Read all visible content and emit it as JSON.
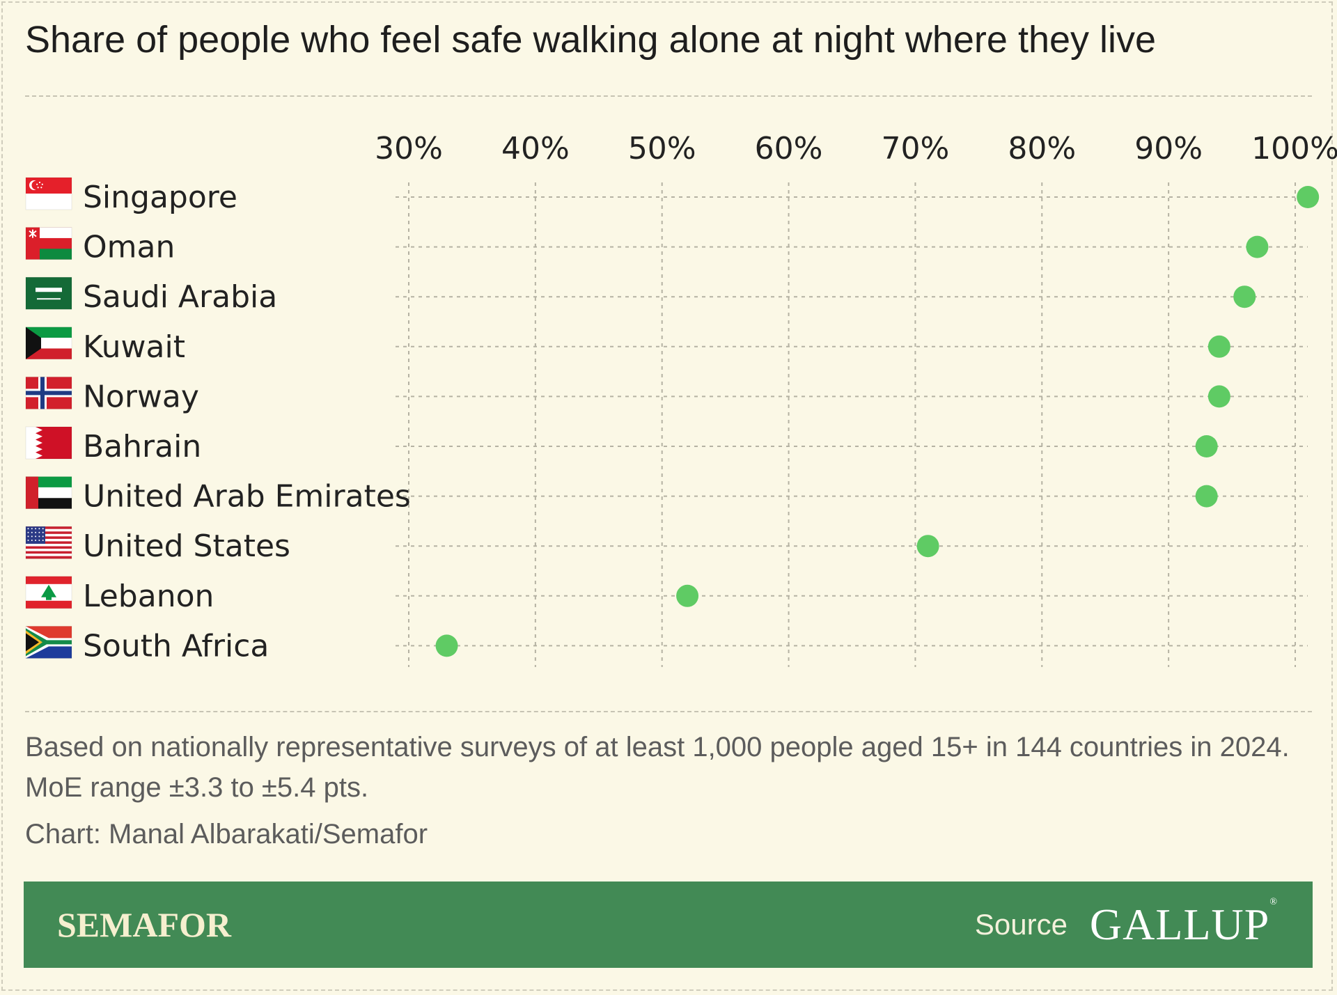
{
  "title": "Share of people who feel safe walking alone at night where they live",
  "note": "Based on nationally representative surveys of at least 1,000 people aged 15+ in 144 countries in 2024. MoE range ±3.3 to ±5.4 pts.",
  "credit": "Chart: Manal Albarakati/Semafor",
  "footer": {
    "brand": "SEMAFOR",
    "source_label": "Source",
    "source_name": "GALLUP",
    "source_mark": "®"
  },
  "colors": {
    "background": "#fbf8e6",
    "dot": "#5fcb64",
    "footer": "#428a55"
  },
  "chart_data": {
    "type": "scatter",
    "title": "Share of people who feel safe walking alone at night where they live",
    "xlabel": "",
    "ylabel": "",
    "xlim": [
      30,
      100
    ],
    "x_ticks": [
      30,
      40,
      50,
      60,
      70,
      80,
      90,
      100
    ],
    "x_tick_labels": [
      "30%",
      "40%",
      "50%",
      "60%",
      "70%",
      "80%",
      "90%",
      "100%"
    ],
    "grid": true,
    "categories": [
      "Singapore",
      "Oman",
      "Saudi Arabia",
      "Kuwait",
      "Norway",
      "Bahrain",
      "United Arab Emirates",
      "United States",
      "Lebanon",
      "South Africa"
    ],
    "flag_icons": [
      "singapore-flag-icon",
      "oman-flag-icon",
      "saudi-arabia-flag-icon",
      "kuwait-flag-icon",
      "norway-flag-icon",
      "bahrain-flag-icon",
      "uae-flag-icon",
      "united-states-flag-icon",
      "lebanon-flag-icon",
      "south-africa-flag-icon"
    ],
    "values": [
      101,
      97,
      96,
      94,
      94,
      93,
      93,
      71,
      52,
      33
    ]
  }
}
